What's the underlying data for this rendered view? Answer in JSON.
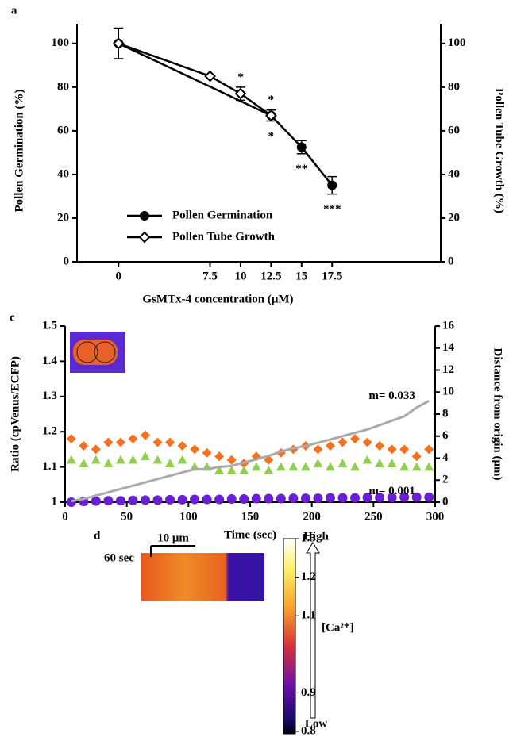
{
  "chart_data": [
    {
      "type": "line",
      "label": "a",
      "xlabel": "GsMTx-4 concentration (μM)",
      "ylabel": "Pollen Germination (%)",
      "y2label": "Pollen Tube Growth (%)",
      "xlim": [
        -3.4,
        26.4
      ],
      "xticks": [
        0,
        7.5,
        10,
        12.5,
        15,
        17.5
      ],
      "ylim": [
        0,
        109
      ],
      "yticks": [
        0,
        20,
        40,
        60,
        80,
        100
      ],
      "y2lim": [
        0,
        109
      ],
      "y2ticks": [
        0,
        20,
        40,
        60,
        80,
        100
      ],
      "legend": "lower left",
      "series": [
        {
          "name": "Pollen Germination",
          "color": "#000000",
          "marker": "circle",
          "x": [
            0,
            12.5,
            15,
            17.5
          ],
          "values": [
            100,
            67,
            52.5,
            35
          ],
          "errors": [
            7,
            2.5,
            3,
            4
          ]
        },
        {
          "name": "Pollen Tube Growth",
          "color": "#000000",
          "marker": "open-diamond",
          "x": [
            0,
            7.5,
            10,
            12.5
          ],
          "values": [
            100,
            85,
            77,
            67
          ],
          "errors": [
            null,
            null,
            3,
            null
          ]
        }
      ],
      "annotations": [
        {
          "text": "*",
          "x": 10,
          "position": "above"
        },
        {
          "text": "*",
          "x": 12.5,
          "position": "above"
        },
        {
          "text": "*",
          "x": 12.5,
          "position": "below"
        },
        {
          "text": "**",
          "x": 15,
          "position": "below"
        },
        {
          "text": "***",
          "x": 17.5,
          "position": "below"
        }
      ]
    },
    {
      "type": "scatter",
      "label": "c",
      "xlabel": "Time (sec)",
      "ylabel": "Ratio (cpVenus/ECFP)",
      "y2label": "Distance from origin (μm)",
      "xlim": [
        0,
        300
      ],
      "xticks": [
        0,
        50,
        100,
        150,
        200,
        250,
        300
      ],
      "ylim": [
        1,
        1.5
      ],
      "yticks": [
        1,
        1.1,
        1.2,
        1.3,
        1.4,
        1.5
      ],
      "y2lim": [
        0,
        16
      ],
      "y2ticks": [
        0,
        2,
        4,
        6,
        8,
        10,
        12,
        14,
        16
      ],
      "x": [
        5,
        15,
        25,
        35,
        45,
        55,
        65,
        75,
        85,
        95,
        105,
        115,
        125,
        135,
        145,
        155,
        165,
        175,
        185,
        195,
        205,
        215,
        225,
        235,
        245,
        255,
        265,
        275,
        285,
        295
      ],
      "series": [
        {
          "color": "#f7711c",
          "marker": "diamond",
          "values": [
            1.18,
            1.16,
            1.15,
            1.17,
            1.17,
            1.18,
            1.19,
            1.17,
            1.17,
            1.16,
            1.15,
            1.14,
            1.13,
            1.12,
            1.11,
            1.13,
            1.12,
            1.14,
            1.15,
            1.16,
            1.15,
            1.16,
            1.17,
            1.18,
            1.17,
            1.16,
            1.15,
            1.15,
            1.13,
            1.15
          ]
        },
        {
          "color": "#8fcf4f",
          "marker": "triangle",
          "values": [
            1.12,
            1.11,
            1.12,
            1.11,
            1.12,
            1.12,
            1.13,
            1.12,
            1.11,
            1.12,
            1.1,
            1.1,
            1.09,
            1.09,
            1.09,
            1.1,
            1.09,
            1.1,
            1.1,
            1.1,
            1.11,
            1.1,
            1.11,
            1.1,
            1.12,
            1.11,
            1.11,
            1.1,
            1.1,
            1.1
          ]
        },
        {
          "color": "#6a1fd4",
          "marker": "circle",
          "values": [
            1.0,
            1.002,
            1.003,
            1.004,
            1.004,
            1.005,
            1.006,
            1.006,
            1.007,
            1.007,
            1.008,
            1.008,
            1.008,
            1.009,
            1.009,
            1.01,
            1.01,
            1.01,
            1.011,
            1.011,
            1.011,
            1.012,
            1.012,
            1.012,
            1.013,
            1.013,
            1.013,
            1.014,
            1.014,
            1.014
          ]
        },
        {
          "color": "#aaaaaa",
          "marker": "none",
          "axis": "y2",
          "values": [
            0.1,
            0.3,
            0.6,
            0.9,
            1.2,
            1.5,
            1.8,
            2.1,
            2.4,
            2.7,
            3.0,
            3.0,
            3.2,
            3.3,
            3.6,
            3.9,
            4.2,
            4.6,
            4.9,
            5.1,
            5.4,
            5.7,
            6.0,
            6.3,
            6.6,
            7.0,
            7.4,
            7.8,
            8.6,
            9.2
          ]
        }
      ],
      "annotations": [
        {
          "text": "m= 0.033",
          "x": 265,
          "y2": 9.6
        },
        {
          "text": "m= 0.001",
          "x": 265,
          "y": 1.03
        }
      ]
    },
    {
      "type": "kymograph",
      "label": "d",
      "scale_bar": "10 μm",
      "time_bar": "60 sec",
      "colorbar": {
        "lim": [
          0.8,
          1.3
        ],
        "ticks": [
          0.8,
          0.9,
          1.1,
          1.2,
          1.3
        ]
      },
      "arrow_top": "High",
      "arrow_bottom": "Low",
      "arrow_label": "[Ca²⁺]"
    }
  ]
}
